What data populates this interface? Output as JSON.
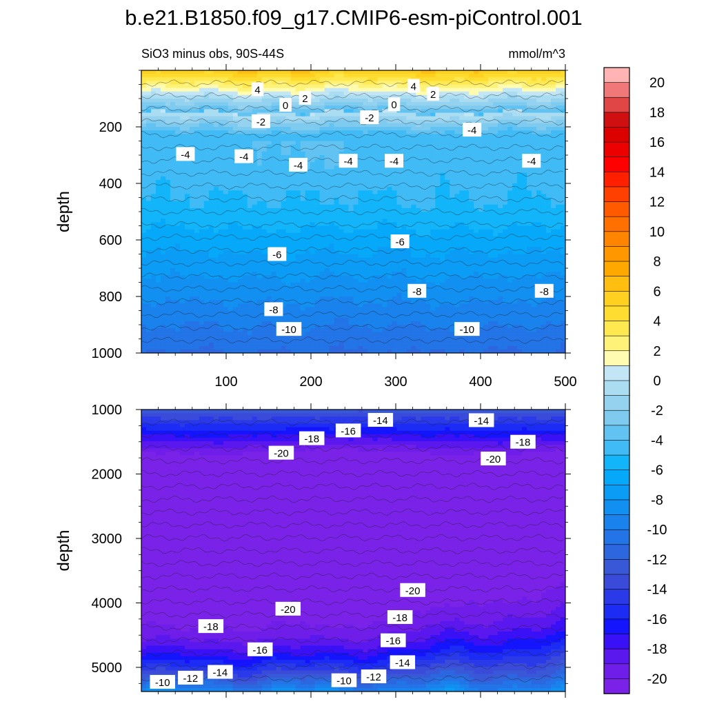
{
  "chart_data": {
    "type": "contour",
    "title": "b.e21.B1850.f09_g17.CMIP6-esm-piControl.001",
    "subtitle_left": "SiO3 minus obs, 90S-44S",
    "subtitle_right": "mmol/m^3",
    "ylabel": "depth",
    "xlabel": "",
    "xlim": [
      0,
      500
    ],
    "x_ticks": [
      100,
      200,
      300,
      400,
      500
    ],
    "panels": [
      {
        "name": "upper",
        "ylim": [
          0,
          1000
        ],
        "y_ticks": [
          200,
          400,
          600,
          800,
          1000
        ],
        "show_x_tick_labels": true,
        "contour_labels": [
          {
            "text": "4",
            "x": 137,
            "y": 67
          },
          {
            "text": "2",
            "x": 193,
            "y": 97
          },
          {
            "text": "0",
            "x": 170,
            "y": 122
          },
          {
            "text": "-2",
            "x": 141,
            "y": 180
          },
          {
            "text": "4",
            "x": 321,
            "y": 55
          },
          {
            "text": "2",
            "x": 344,
            "y": 83
          },
          {
            "text": "0",
            "x": 298,
            "y": 120
          },
          {
            "text": "-2",
            "x": 269,
            "y": 166
          },
          {
            "text": "-4",
            "x": 390,
            "y": 210
          },
          {
            "text": "-4",
            "x": 52,
            "y": 296
          },
          {
            "text": "-4",
            "x": 121,
            "y": 304
          },
          {
            "text": "-4",
            "x": 185,
            "y": 334
          },
          {
            "text": "-4",
            "x": 244,
            "y": 320
          },
          {
            "text": "-4",
            "x": 298,
            "y": 320
          },
          {
            "text": "-4",
            "x": 460,
            "y": 320
          },
          {
            "text": "-6",
            "x": 160,
            "y": 650
          },
          {
            "text": "-6",
            "x": 305,
            "y": 605
          },
          {
            "text": "-8",
            "x": 156,
            "y": 845
          },
          {
            "text": "-8",
            "x": 325,
            "y": 780
          },
          {
            "text": "-8",
            "x": 475,
            "y": 780
          },
          {
            "text": "-10",
            "x": 174,
            "y": 915
          },
          {
            "text": "-10",
            "x": 384,
            "y": 915
          }
        ]
      },
      {
        "name": "lower",
        "ylim": [
          1000,
          5375
        ],
        "y_ticks": [
          1000,
          2000,
          3000,
          4000,
          5000
        ],
        "show_x_tick_labels": false,
        "contour_labels": [
          {
            "text": "-14",
            "x": 282,
            "y": 1160
          },
          {
            "text": "-14",
            "x": 401,
            "y": 1165
          },
          {
            "text": "-16",
            "x": 244,
            "y": 1325
          },
          {
            "text": "-18",
            "x": 201,
            "y": 1445
          },
          {
            "text": "-18",
            "x": 450,
            "y": 1500
          },
          {
            "text": "-20",
            "x": 165,
            "y": 1670
          },
          {
            "text": "-20",
            "x": 415,
            "y": 1760
          },
          {
            "text": "-20",
            "x": 320,
            "y": 3800
          },
          {
            "text": "-20",
            "x": 173,
            "y": 4090
          },
          {
            "text": "-18",
            "x": 305,
            "y": 4220
          },
          {
            "text": "-18",
            "x": 82,
            "y": 4360
          },
          {
            "text": "-16",
            "x": 297,
            "y": 4580
          },
          {
            "text": "-16",
            "x": 140,
            "y": 4720
          },
          {
            "text": "-14",
            "x": 308,
            "y": 4920
          },
          {
            "text": "-14",
            "x": 93,
            "y": 5070
          },
          {
            "text": "-12",
            "x": 58,
            "y": 5160
          },
          {
            "text": "-12",
            "x": 274,
            "y": 5140
          },
          {
            "text": "-10",
            "x": 25,
            "y": 5225
          },
          {
            "text": "-10",
            "x": 239,
            "y": 5200
          }
        ]
      }
    ],
    "colorbar": {
      "levels": [
        21,
        20,
        19,
        18,
        17,
        16,
        15,
        14,
        13,
        12,
        11,
        10,
        9,
        8,
        7,
        6,
        5,
        4,
        3,
        2,
        1,
        0,
        -1,
        -2,
        -3,
        -4,
        -5,
        -6,
        -7,
        -8,
        -9,
        -10,
        -11,
        -12,
        -13,
        -14,
        -15,
        -16,
        -17,
        -18,
        -19,
        -20,
        -21
      ],
      "labels": [
        "20",
        "18",
        "16",
        "14",
        "12",
        "10",
        "8",
        "6",
        "4",
        "2",
        "0",
        "-2",
        "-4",
        "-6",
        "-8",
        "-10",
        "-12",
        "-14",
        "-16",
        "-18",
        "-20"
      ],
      "label_values": [
        20,
        18,
        16,
        14,
        12,
        10,
        8,
        6,
        4,
        2,
        0,
        -2,
        -4,
        -6,
        -8,
        -10,
        -12,
        -14,
        -16,
        -18,
        -20
      ],
      "colors": [
        "#ffb3b3",
        "#f07878",
        "#e04646",
        "#d01010",
        "#dc0000",
        "#ec0000",
        "#ff0000",
        "#ff2000",
        "#ff4000",
        "#ff5a00",
        "#ff7000",
        "#ff8400",
        "#ff9800",
        "#ffa800",
        "#ffbe10",
        "#ffd020",
        "#ffdd30",
        "#ffe850",
        "#fff278",
        "#fffbb0",
        "#c2e6f6",
        "#aadcf2",
        "#94d2ef",
        "#7fcbef",
        "#62c2f2",
        "#40bbf6",
        "#12b5f9",
        "#06a9f9",
        "#0b9cf6",
        "#1290f2",
        "#1a82ec",
        "#2374e6",
        "#2c67e0",
        "#3858d8",
        "#3a4bda",
        "#2a3ae8",
        "#1c2cf5",
        "#1414ff",
        "#3a10f6",
        "#5a18ee",
        "#6e1ee8",
        "#7a22e8"
      ]
    }
  }
}
